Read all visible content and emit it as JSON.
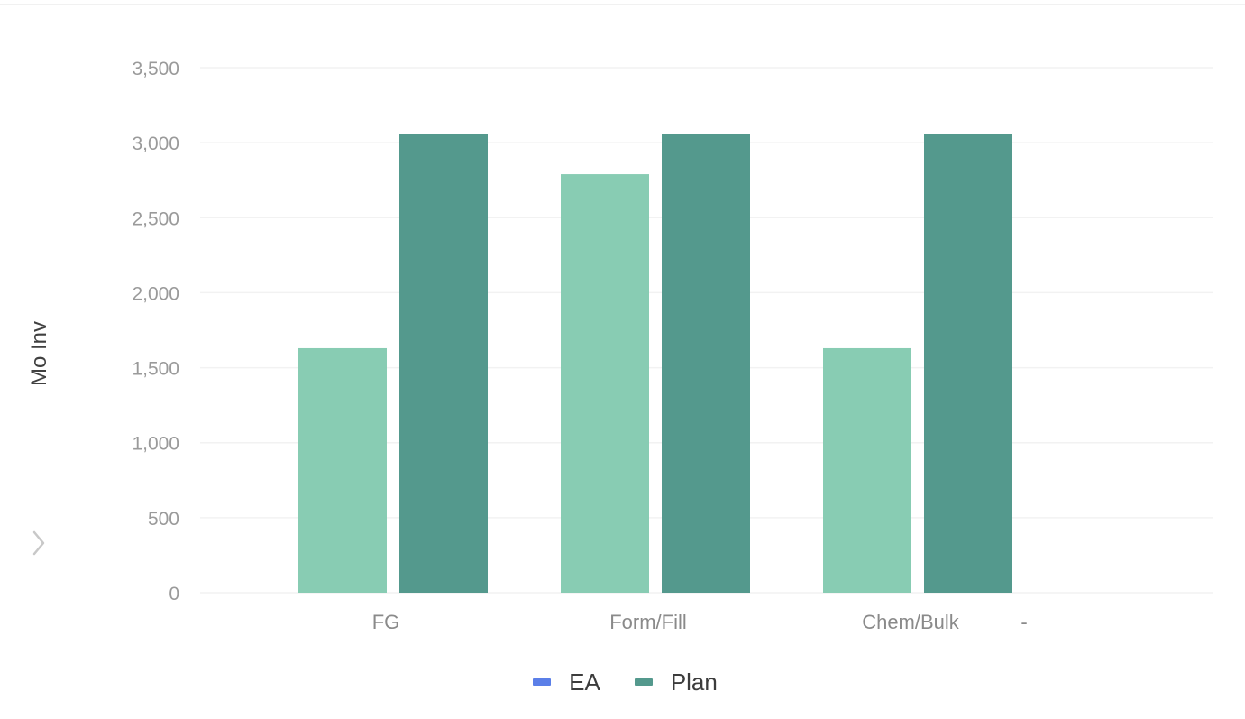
{
  "chart_data": {
    "type": "bar",
    "title": "",
    "xlabel": "",
    "ylabel": "Mo Inv",
    "categories": [
      "FG",
      "Form/Fill",
      "Chem/Bulk"
    ],
    "trailing_tick_label": "-",
    "ylim": [
      0,
      3500
    ],
    "yticks": [
      0,
      500,
      1000,
      1500,
      2000,
      2500,
      3000,
      3500
    ],
    "ytick_labels": [
      "0",
      "500",
      "1,000",
      "1,500",
      "2,000",
      "2,500",
      "3,000",
      "3,500"
    ],
    "grid": true,
    "legend_position": "bottom",
    "series": [
      {
        "name": "EA",
        "color": "#5b7fe8",
        "values": [
          null,
          null,
          null
        ]
      },
      {
        "name": "",
        "color": "#88ccb3",
        "values": [
          1630,
          2790,
          1630
        ]
      },
      {
        "name": "Plan",
        "color": "#54998d",
        "values": [
          3060,
          3060,
          3060
        ]
      }
    ]
  },
  "legend": [
    {
      "label": "EA",
      "color": "#5b7fe8"
    },
    {
      "label": "Plan",
      "color": "#54998d"
    }
  ],
  "icons": {
    "expand": "chevron-right-icon"
  }
}
